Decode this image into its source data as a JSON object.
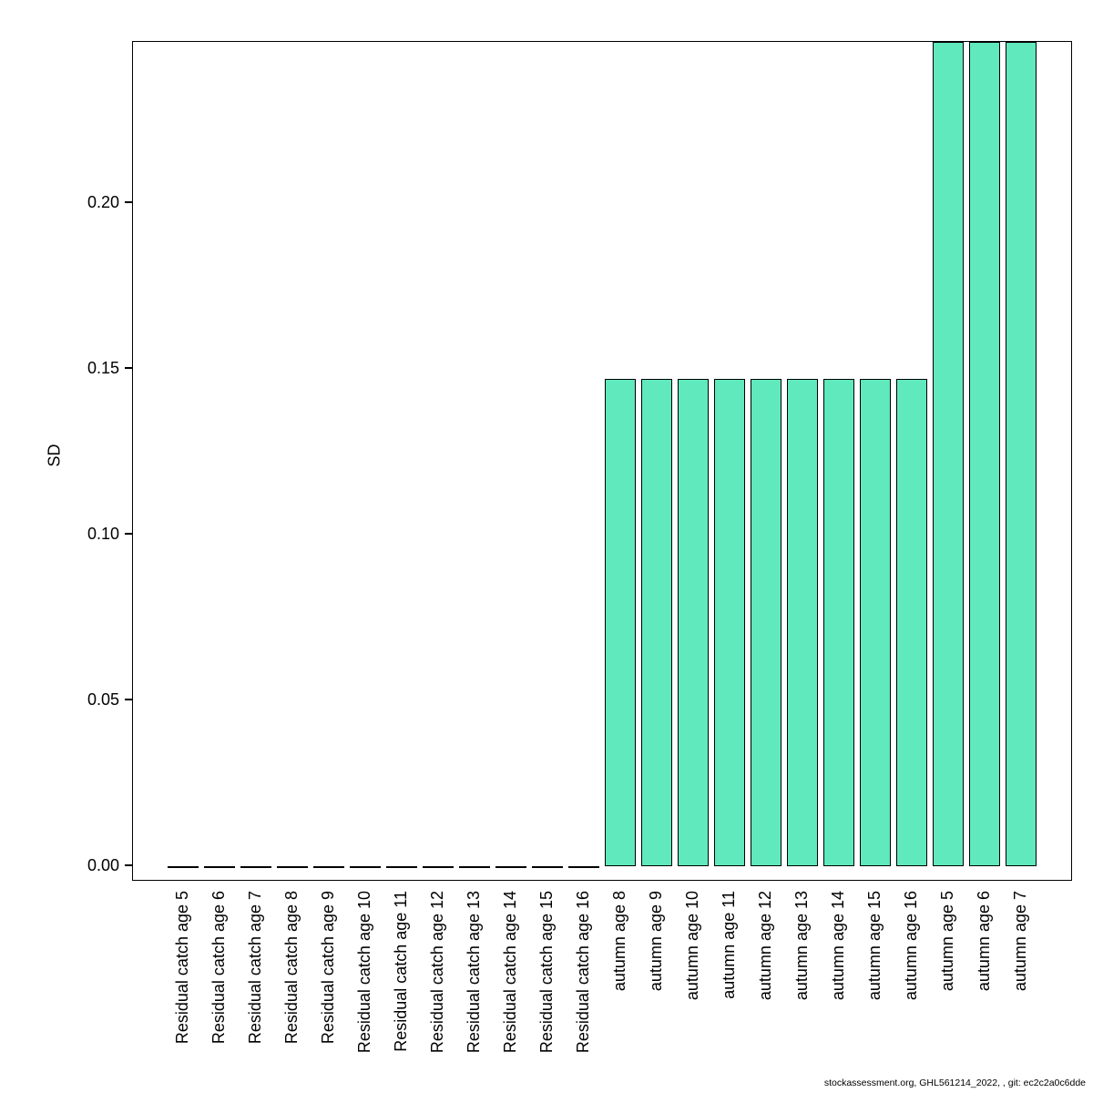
{
  "chart_data": {
    "type": "bar",
    "title": "",
    "xlabel": "",
    "ylabel": "SD",
    "categories": [
      "Residual catch age 5",
      "Residual catch age 6",
      "Residual catch age 7",
      "Residual catch age 8",
      "Residual catch age 9",
      "Residual catch age 10",
      "Residual catch age 11",
      "Residual catch age 12",
      "Residual catch age 13",
      "Residual catch age 14",
      "Residual catch age 15",
      "Residual catch age 16",
      "autumn age 8",
      "autumn age 9",
      "autumn age 10",
      "autumn age 11",
      "autumn age 12",
      "autumn age 13",
      "autumn age 14",
      "autumn age 15",
      "autumn age 16",
      "autumn age 5",
      "autumn age 6",
      "autumn age 7"
    ],
    "values": [
      0,
      0,
      0,
      0,
      0,
      0,
      0,
      0,
      0,
      0,
      0,
      0,
      0.147,
      0.147,
      0.147,
      0.147,
      0.147,
      0.147,
      0.147,
      0.147,
      0.147,
      0.26,
      0.26,
      0.26
    ],
    "clipped_at_top": [
      "autumn age 5",
      "autumn age 6",
      "autumn age 7"
    ],
    "ylim": [
      -0.0041,
      0.2486
    ],
    "yticks": [
      0,
      0.05,
      0.1,
      0.15,
      0.2
    ],
    "ytick_labels": [
      "0.00",
      "0.05",
      "0.10",
      "0.15",
      "0.20"
    ],
    "bar_color": "#5FE9BC",
    "bar_border_color": "#000000",
    "grid": false,
    "legend": "none"
  },
  "footer": {
    "text": "stockassessment.org, GHL561214_2022,  , git: ec2c2a0c6dde"
  }
}
